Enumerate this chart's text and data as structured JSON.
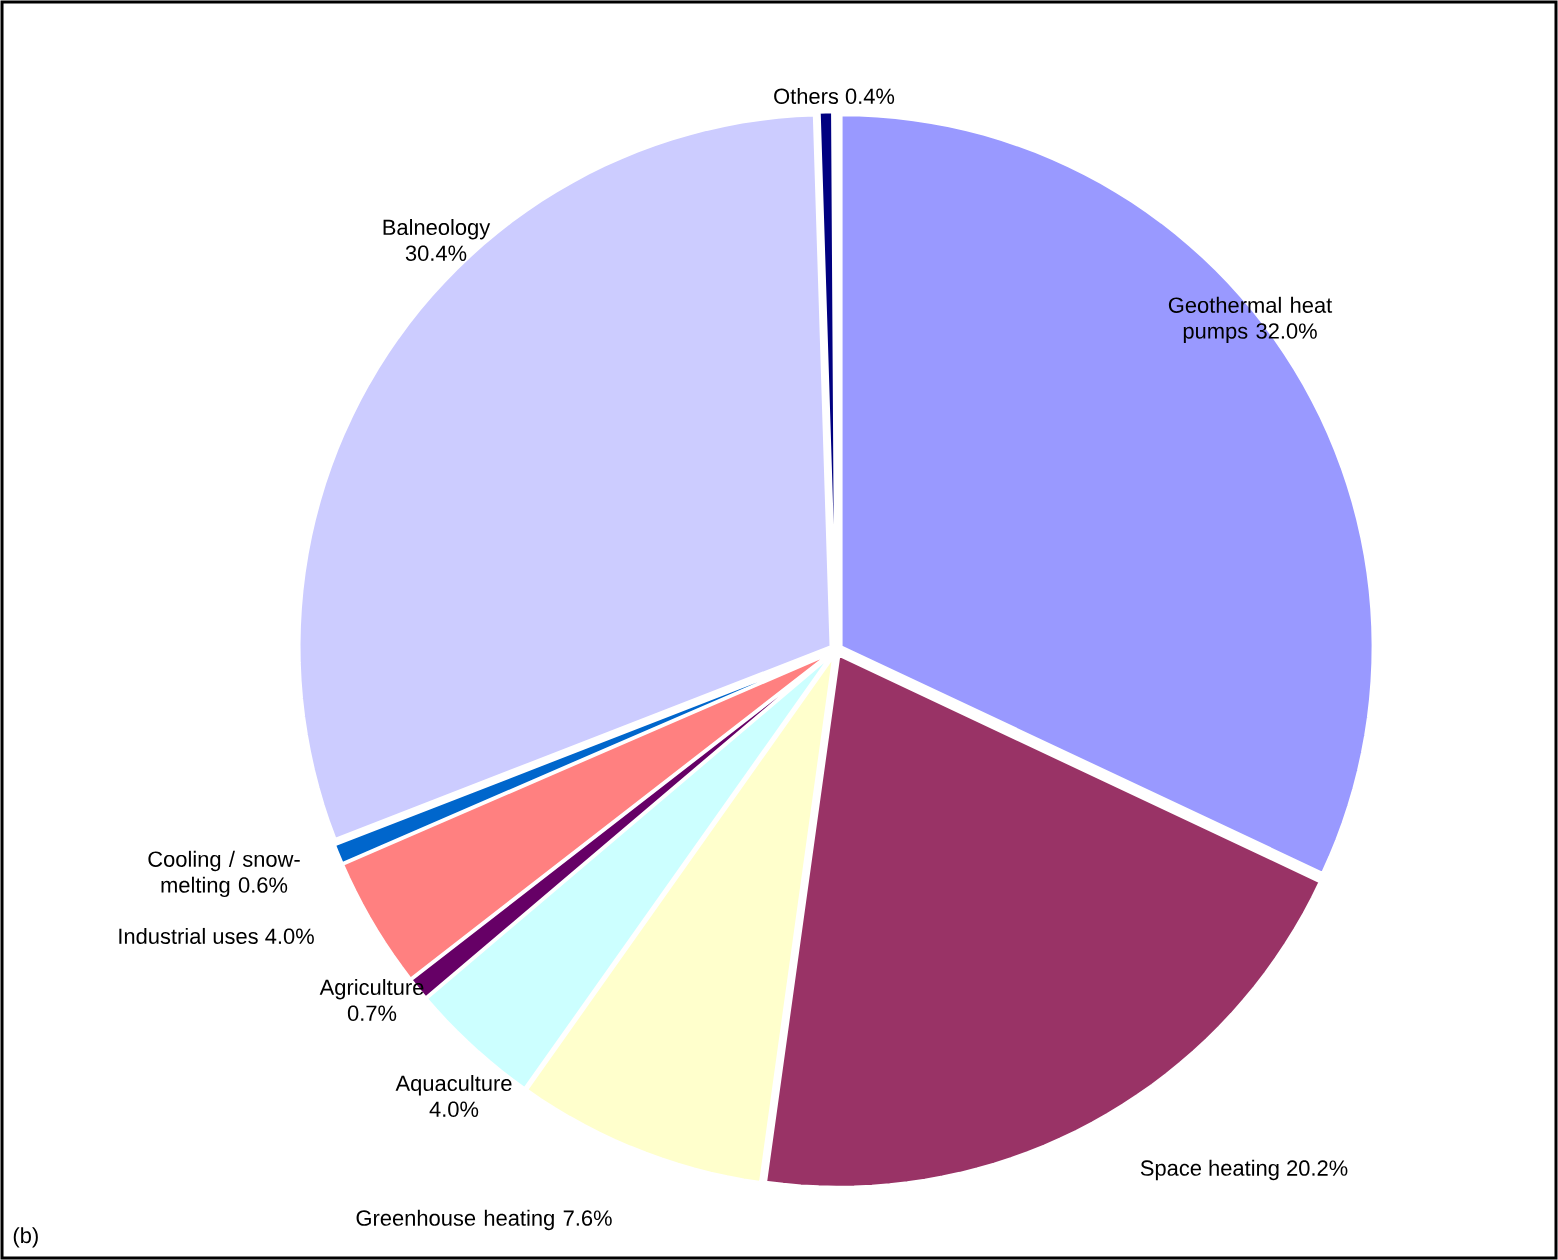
{
  "chart_data": {
    "type": "pie",
    "categories": [
      "Geothermal heat pumps",
      "Space heating",
      "Greenhouse heating",
      "Aquaculture",
      "Agriculture",
      "Industrial uses",
      "Cooling / snow-melting",
      "Balneology",
      "Others"
    ],
    "values": [
      32.0,
      20.2,
      7.6,
      4.0,
      0.7,
      4.0,
      0.6,
      30.4,
      0.4
    ],
    "value_labels": [
      "32.0%",
      "20.2%",
      "7.6%",
      "4.0%",
      "0.7%",
      "4.0%",
      "0.6%",
      "30.4%",
      "0.4%"
    ],
    "colors": [
      "#9999ff",
      "#993366",
      "#ffffcc",
      "#ccffff",
      "#660066",
      "#ff8080",
      "#0066cc",
      "#ccccff",
      "#000080"
    ],
    "annotations": [
      "(b)"
    ]
  }
}
